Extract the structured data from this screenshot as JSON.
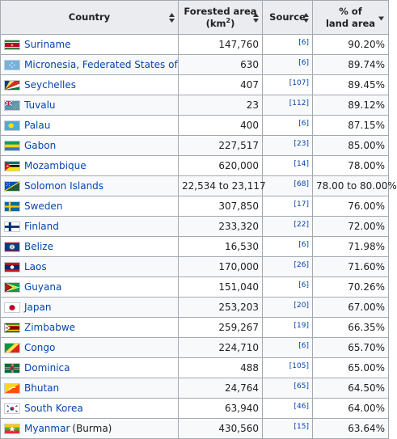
{
  "headers": {
    "country": "Country",
    "forested_area": "Forested area",
    "forested_unit_base": "(km",
    "forested_unit_exp": "2",
    "forested_unit_close": ")",
    "source": "Source",
    "pct_line1": "% of",
    "pct_line2": "land area"
  },
  "rows": [
    {
      "country": "Suriname",
      "suffix": "",
      "area": "147,760",
      "source": "[6]",
      "pct": "90.20%",
      "flag": "flag-suriname"
    },
    {
      "country": "Micronesia, Federated States of",
      "suffix": "",
      "area": "630",
      "source": "[6]",
      "pct": "89.74%",
      "flag": "flag-micronesia"
    },
    {
      "country": "Seychelles",
      "suffix": "",
      "area": "407",
      "source": "[107]",
      "pct": "89.45%",
      "flag": "flag-seychelles"
    },
    {
      "country": "Tuvalu",
      "suffix": "",
      "area": "23",
      "source": "[112]",
      "pct": "89.12%",
      "flag": "flag-tuvalu"
    },
    {
      "country": "Palau",
      "suffix": "",
      "area": "400",
      "source": "[6]",
      "pct": "87.15%",
      "flag": "flag-palau"
    },
    {
      "country": "Gabon",
      "suffix": "",
      "area": "227,517",
      "source": "[23]",
      "pct": "85.00%",
      "flag": "flag-gabon"
    },
    {
      "country": "Mozambique",
      "suffix": "",
      "area": "620,000",
      "source": "[14]",
      "pct": "78.00%",
      "flag": "flag-mozambique"
    },
    {
      "country": "Solomon Islands",
      "suffix": "",
      "area": "22,534 to 23,117",
      "source": "[68]",
      "pct": "78.00 to 80.00%",
      "flag": "flag-solomon-islands"
    },
    {
      "country": "Sweden",
      "suffix": "",
      "area": "307,850",
      "source": "[17]",
      "pct": "76.00%",
      "flag": "flag-sweden"
    },
    {
      "country": "Finland",
      "suffix": "",
      "area": "233,320",
      "source": "[22]",
      "pct": "72.00%",
      "flag": "flag-finland"
    },
    {
      "country": "Belize",
      "suffix": "",
      "area": "16,530",
      "source": "[6]",
      "pct": "71.98%",
      "flag": "flag-belize"
    },
    {
      "country": "Laos",
      "suffix": "",
      "area": "170,000",
      "source": "[26]",
      "pct": "71.60%",
      "flag": "flag-laos"
    },
    {
      "country": "Guyana",
      "suffix": "",
      "area": "151,040",
      "source": "[6]",
      "pct": "70.26%",
      "flag": "flag-guyana"
    },
    {
      "country": "Japan",
      "suffix": "",
      "area": "253,203",
      "source": "[20]",
      "pct": "67.00%",
      "flag": "flag-japan"
    },
    {
      "country": "Zimbabwe",
      "suffix": "",
      "area": "259,267",
      "source": "[19]",
      "pct": "66.35%",
      "flag": "flag-zimbabwe"
    },
    {
      "country": "Congo",
      "suffix": "",
      "area": "224,710",
      "source": "[6]",
      "pct": "65.70%",
      "flag": "flag-congo"
    },
    {
      "country": "Dominica",
      "suffix": "",
      "area": "488",
      "source": "[105]",
      "pct": "65.00%",
      "flag": "flag-dominica"
    },
    {
      "country": "Bhutan",
      "suffix": "",
      "area": "24,764",
      "source": "[65]",
      "pct": "64.50%",
      "flag": "flag-bhutan"
    },
    {
      "country": "South Korea",
      "suffix": "",
      "area": "63,940",
      "source": "[46]",
      "pct": "64.00%",
      "flag": "flag-south-korea"
    },
    {
      "country": "Myanmar",
      "suffix": "(Burma)",
      "area": "430,560",
      "source": "[15]",
      "pct": "63.64%",
      "flag": "flag-myanmar"
    }
  ]
}
